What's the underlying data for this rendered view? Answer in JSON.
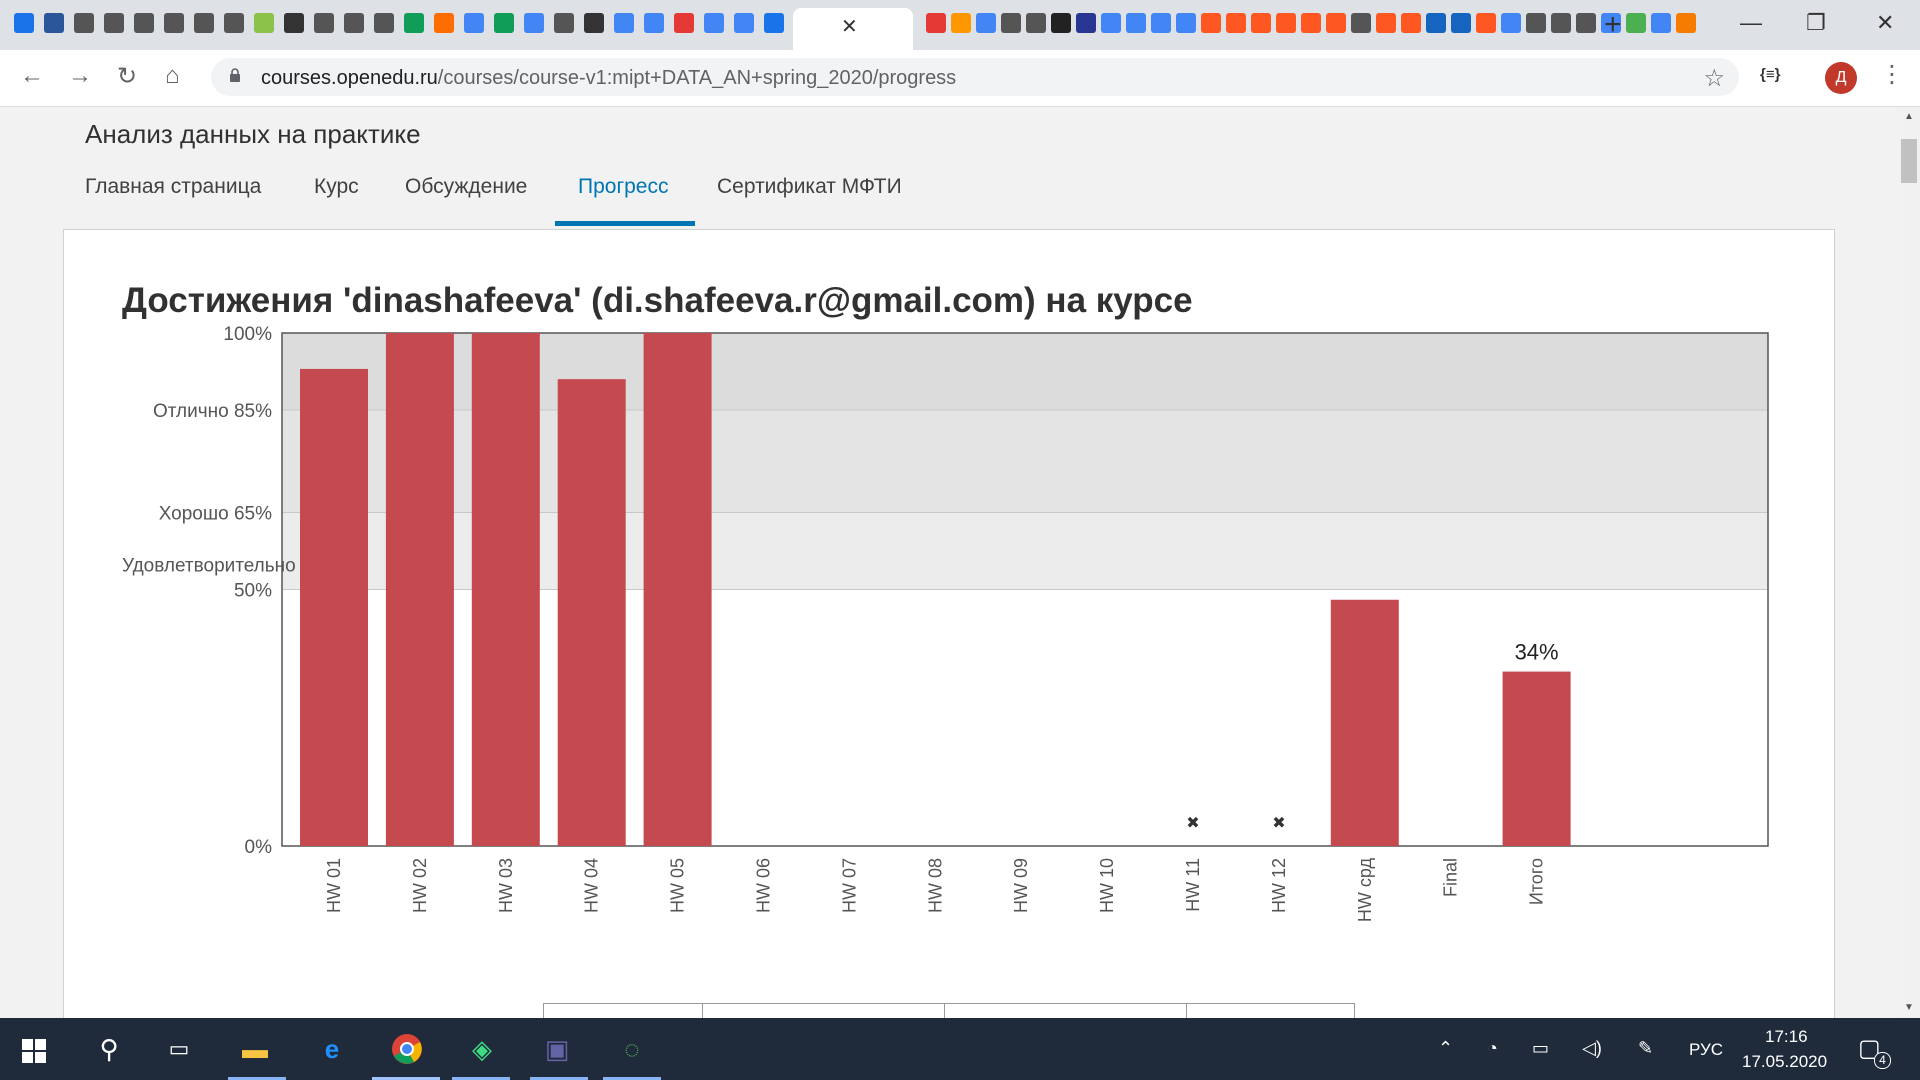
{
  "browser": {
    "tab_icon_colors": [
      "#1a73e8",
      "#2b579a",
      "#555555",
      "#555555",
      "#555555",
      "#555555",
      "#555555",
      "#555555",
      "#8bc34a",
      "#333333",
      "#555555",
      "#555555",
      "#555555",
      "#0f9d58",
      "#ff6d00",
      "#4285f4",
      "#0f9d58",
      "#4285f4",
      "#555555",
      "#333333",
      "#4285f4",
      "#4285f4",
      "#e53935",
      "#4285f4",
      "#4285f4",
      "#1a73e8"
    ],
    "right_tab_icon_colors": [
      "#e53935",
      "#ff9800",
      "#4285f4",
      "#555555",
      "#555555",
      "#222222",
      "#283593",
      "#4285f4",
      "#4285f4",
      "#4285f4",
      "#4285f4",
      "#ff5722",
      "#ff5722",
      "#ff5722",
      "#ff5722",
      "#ff5722",
      "#ff5722",
      "#555555",
      "#ff5722",
      "#ff5722",
      "#1565c0",
      "#1565c0",
      "#ff5722",
      "#4285f4",
      "#555555",
      "#555555",
      "#555555",
      "#4285f4",
      "#4caf50",
      "#4285f4",
      "#f57c00"
    ],
    "active_tab_close": "✕",
    "new_tab_icon": "plus-icon",
    "url_domain": "courses.openedu.ru",
    "url_path": "/courses/course-v1:mipt+DATA_AN+spring_2020/progress",
    "extension_label": "{≡}",
    "avatar_letter": "Д"
  },
  "course": {
    "title": "Анализ данных на практике",
    "tabs": [
      {
        "label": "Главная страница"
      },
      {
        "label": "Курс"
      },
      {
        "label": "Обсуждение"
      },
      {
        "label": "Прогресс"
      },
      {
        "label": "Сертификат МФТИ"
      }
    ],
    "active_tab_index": 3
  },
  "progress": {
    "heading": "Достижения 'dinashafeeva' (di.shafeeva.r@gmail.com) на курсе"
  },
  "chart_data": {
    "type": "bar",
    "title": "",
    "ylim": [
      0,
      100
    ],
    "y_ticks": [
      {
        "value": 100,
        "label": "100%"
      },
      {
        "value": 85,
        "label": "Отлично 85%"
      },
      {
        "value": 65,
        "label": "Хорошо 65%"
      },
      {
        "value": 50,
        "label": "50%",
        "prefix": "Удовлетворительно"
      },
      {
        "value": 0,
        "label": "0%"
      }
    ],
    "grade_bands": [
      {
        "from": 85,
        "to": 100,
        "color": "#dcdcdc"
      },
      {
        "from": 65,
        "to": 85,
        "color": "#e4e4e4"
      },
      {
        "from": 50,
        "to": 65,
        "color": "#ececec"
      }
    ],
    "categories": [
      "HW 01",
      "HW 02",
      "HW 03",
      "HW 04",
      "HW 05",
      "HW 06",
      "HW 07",
      "HW 08",
      "HW 09",
      "HW 10",
      "HW 11",
      "HW 12",
      "HW срд",
      "Final",
      "Итого"
    ],
    "values": [
      93,
      100,
      100,
      91,
      100,
      0,
      0,
      0,
      0,
      0,
      0,
      0,
      48,
      0,
      34
    ],
    "dropped": [
      false,
      false,
      false,
      false,
      false,
      false,
      false,
      false,
      false,
      false,
      true,
      true,
      false,
      false,
      false
    ],
    "total_label": "34%",
    "bar_color": "#c44a4f"
  },
  "taskbar": {
    "lang": "РУС",
    "time": "17:16",
    "date": "17.05.2020",
    "notifications": "4"
  }
}
